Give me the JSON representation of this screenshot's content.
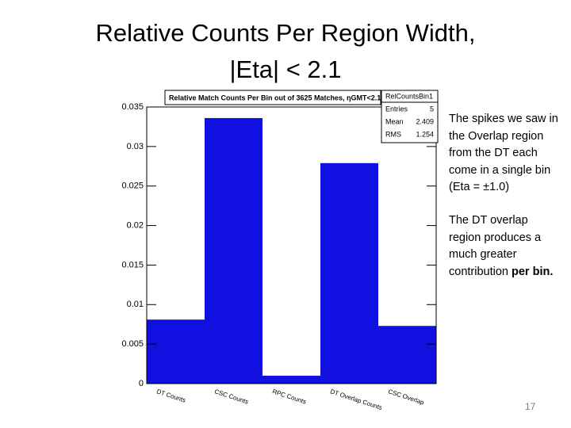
{
  "slide": {
    "title_line1": "Relative Counts Per Region Width,",
    "title_line2": "|Eta| < 2.1",
    "notes": [
      {
        "text": "The spikes we saw in the Overlap region from the DT each come in a single bin (Eta = ±1.0)"
      },
      {
        "text": "The DT overlap region produces a much greater contribution",
        "bold": "per bin."
      }
    ],
    "page_number": 17
  },
  "chart_data": {
    "type": "bar",
    "title": "Relative Match Counts Per Bin out of 3625 Matches, ηGMT<2.1",
    "categories": [
      "DT Counts",
      "CSC Counts",
      "RPC Counts",
      "DT Overlap Counts",
      "CSC Overlap"
    ],
    "values": [
      0.0081,
      0.0336,
      0.001,
      0.0279,
      0.0073
    ],
    "color": "#1010e0",
    "ylim": [
      0,
      0.035
    ],
    "yticks": [
      0,
      0.005,
      0.01,
      0.015,
      0.02,
      0.025,
      0.03,
      0.035
    ],
    "grid": false,
    "stats_box": {
      "name": "RelCountsBin1",
      "rows": [
        {
          "label": "Entries",
          "value": 5
        },
        {
          "label": "Mean",
          "value": 2.409
        },
        {
          "label": "RMS",
          "value": 1.254
        }
      ]
    }
  }
}
